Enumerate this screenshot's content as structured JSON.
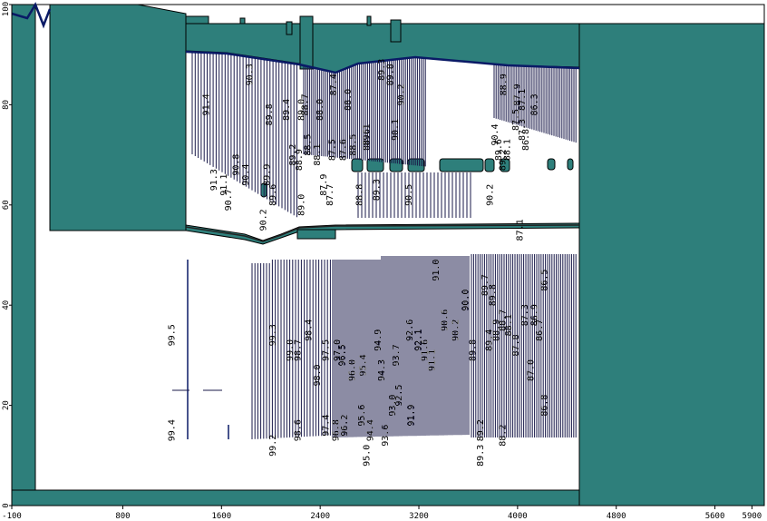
{
  "chart_data": {
    "type": "contour",
    "xlim": [
      -100,
      6000
    ],
    "ylim": [
      0,
      100
    ],
    "x_ticks": [
      {
        "value": -100,
        "label": "-100"
      },
      {
        "value": 800,
        "label": "800"
      },
      {
        "value": 1600,
        "label": "1600"
      },
      {
        "value": 2400,
        "label": "2400"
      },
      {
        "value": 3200,
        "label": "3200"
      },
      {
        "value": 4000,
        "label": "4000"
      },
      {
        "value": 4800,
        "label": "4800"
      },
      {
        "value": 5600,
        "label": "5600"
      },
      {
        "value": 5900,
        "label": "5900"
      }
    ],
    "y_ticks": [
      {
        "value": 0,
        "label": "0"
      },
      {
        "value": 20,
        "label": "20"
      },
      {
        "value": 40,
        "label": "40"
      },
      {
        "value": 60,
        "label": "60"
      },
      {
        "value": 80,
        "label": "80"
      },
      {
        "value": 100,
        "label": "100"
      }
    ],
    "colors": {
      "block": "#2e7f7b",
      "surface": "#0a1a66",
      "contour": "#1a1a4a",
      "background": "#ffffff"
    },
    "lower_labels": [
      {
        "text": "99.5",
        "x": 1220,
        "y": 34
      },
      {
        "text": "99.4",
        "x": 1220,
        "y": 15
      },
      {
        "text": "99.3",
        "x": 2040,
        "y": 34
      },
      {
        "text": "99.2",
        "x": 2040,
        "y": 12
      },
      {
        "text": "99.0",
        "x": 2180,
        "y": 31
      },
      {
        "text": "98.7",
        "x": 2240,
        "y": 31
      },
      {
        "text": "98.4",
        "x": 2330,
        "y": 35
      },
      {
        "text": "98.6",
        "x": 2240,
        "y": 15
      },
      {
        "text": "98.0",
        "x": 2400,
        "y": 26
      },
      {
        "text": "97.5",
        "x": 2470,
        "y": 31
      },
      {
        "text": "97.4",
        "x": 2470,
        "y": 16
      },
      {
        "text": "97.0",
        "x": 2560,
        "y": 31
      },
      {
        "text": "96.5",
        "x": 2600,
        "y": 30
      },
      {
        "text": "96.8",
        "x": 2550,
        "y": 15
      },
      {
        "text": "96.2",
        "x": 2620,
        "y": 16
      },
      {
        "text": "96.0",
        "x": 2680,
        "y": 27
      },
      {
        "text": "95.6",
        "x": 2760,
        "y": 18
      },
      {
        "text": "95.4",
        "x": 2770,
        "y": 28
      },
      {
        "text": "95.0",
        "x": 2800,
        "y": 10
      },
      {
        "text": "94.4",
        "x": 2830,
        "y": 15
      },
      {
        "text": "94.9",
        "x": 2890,
        "y": 33
      },
      {
        "text": "94.3",
        "x": 2920,
        "y": 27
      },
      {
        "text": "93.6",
        "x": 2950,
        "y": 14
      },
      {
        "text": "93.0",
        "x": 3010,
        "y": 20
      },
      {
        "text": "93.7",
        "x": 3040,
        "y": 30
      },
      {
        "text": "92.5",
        "x": 3060,
        "y": 22
      },
      {
        "text": "92.6",
        "x": 3150,
        "y": 35
      },
      {
        "text": "92.1",
        "x": 3220,
        "y": 33
      },
      {
        "text": "91.9",
        "x": 3160,
        "y": 18
      },
      {
        "text": "91.6",
        "x": 3270,
        "y": 31
      },
      {
        "text": "91.1",
        "x": 3330,
        "y": 29
      },
      {
        "text": "91.0",
        "x": 3360,
        "y": 47
      },
      {
        "text": "90.6",
        "x": 3430,
        "y": 37
      },
      {
        "text": "90.2",
        "x": 3520,
        "y": 35
      },
      {
        "text": "90.0",
        "x": 3600,
        "y": 41
      },
      {
        "text": "89.8",
        "x": 3660,
        "y": 31
      },
      {
        "text": "89.7",
        "x": 3760,
        "y": 44
      },
      {
        "text": "89.8",
        "x": 3820,
        "y": 42
      },
      {
        "text": "89.2",
        "x": 3720,
        "y": 15
      },
      {
        "text": "89.3",
        "x": 3720,
        "y": 10
      },
      {
        "text": "89.4",
        "x": 3790,
        "y": 33
      },
      {
        "text": "88.9",
        "x": 3850,
        "y": 35
      },
      {
        "text": "88.7",
        "x": 3900,
        "y": 37
      },
      {
        "text": "88.2",
        "x": 3900,
        "y": 14
      },
      {
        "text": "88.1",
        "x": 3950,
        "y": 36
      },
      {
        "text": "87.8",
        "x": 4010,
        "y": 32
      },
      {
        "text": "87.3",
        "x": 4080,
        "y": 38
      },
      {
        "text": "87.0",
        "x": 4130,
        "y": 27
      },
      {
        "text": "86.9",
        "x": 4160,
        "y": 38
      },
      {
        "text": "86.7",
        "x": 4200,
        "y": 35
      },
      {
        "text": "86.5",
        "x": 4240,
        "y": 45
      },
      {
        "text": "86.8",
        "x": 4240,
        "y": 20
      }
    ],
    "upper_labels": [
      {
        "text": "91.4",
        "x": 1500,
        "y": 80
      },
      {
        "text": "91.3",
        "x": 1560,
        "y": 65
      },
      {
        "text": "91.1",
        "x": 1640,
        "y": 64
      },
      {
        "text": "90.8",
        "x": 1740,
        "y": 68
      },
      {
        "text": "90.7",
        "x": 1680,
        "y": 61
      },
      {
        "text": "90.4",
        "x": 1820,
        "y": 66
      },
      {
        "text": "90.3",
        "x": 1850,
        "y": 86
      },
      {
        "text": "90.2",
        "x": 1960,
        "y": 57
      },
      {
        "text": "89.9",
        "x": 1990,
        "y": 66
      },
      {
        "text": "89.8",
        "x": 2010,
        "y": 78
      },
      {
        "text": "89.6",
        "x": 2040,
        "y": 62
      },
      {
        "text": "89.4",
        "x": 2150,
        "y": 79
      },
      {
        "text": "89.2",
        "x": 2200,
        "y": 70
      },
      {
        "text": "89.0",
        "x": 2270,
        "y": 60
      },
      {
        "text": "89.0",
        "x": 2270,
        "y": 79
      },
      {
        "text": "88.9",
        "x": 2250,
        "y": 69
      },
      {
        "text": "88.7",
        "x": 2300,
        "y": 80
      },
      {
        "text": "88.5",
        "x": 2320,
        "y": 72
      },
      {
        "text": "88.1",
        "x": 2400,
        "y": 70
      },
      {
        "text": "88.0",
        "x": 2420,
        "y": 79
      },
      {
        "text": "87.9",
        "x": 2450,
        "y": 64
      },
      {
        "text": "87.7",
        "x": 2500,
        "y": 62
      },
      {
        "text": "87.5",
        "x": 2520,
        "y": 71
      },
      {
        "text": "87.4",
        "x": 2530,
        "y": 84
      },
      {
        "text": "87.6",
        "x": 2610,
        "y": 71
      },
      {
        "text": "88.0",
        "x": 2650,
        "y": 81
      },
      {
        "text": "88.5",
        "x": 2690,
        "y": 72
      },
      {
        "text": "88.8",
        "x": 2740,
        "y": 62
      },
      {
        "text": "88.6",
        "x": 2800,
        "y": 73
      },
      {
        "text": "89.1",
        "x": 2800,
        "y": 74
      },
      {
        "text": "89.3",
        "x": 2880,
        "y": 63
      },
      {
        "text": "89.3",
        "x": 2920,
        "y": 87
      },
      {
        "text": "89.8",
        "x": 2990,
        "y": 86
      },
      {
        "text": "90.1",
        "x": 3030,
        "y": 75
      },
      {
        "text": "90.2",
        "x": 3080,
        "y": 82
      },
      {
        "text": "90.5",
        "x": 3140,
        "y": 62
      },
      {
        "text": "90.2",
        "x": 3800,
        "y": 62
      },
      {
        "text": "90.4",
        "x": 3840,
        "y": 74
      },
      {
        "text": "89.6",
        "x": 3870,
        "y": 71
      },
      {
        "text": "89.2",
        "x": 3900,
        "y": 69
      },
      {
        "text": "88.9",
        "x": 3910,
        "y": 84
      },
      {
        "text": "88.1",
        "x": 3940,
        "y": 71
      },
      {
        "text": "87.9",
        "x": 4020,
        "y": 82
      },
      {
        "text": "87.5",
        "x": 4010,
        "y": 77
      },
      {
        "text": "87.1",
        "x": 4060,
        "y": 81
      },
      {
        "text": "87.3",
        "x": 4060,
        "y": 75
      },
      {
        "text": "86.8",
        "x": 4090,
        "y": 73
      },
      {
        "text": "86.3",
        "x": 4160,
        "y": 80
      },
      {
        "text": "87.1",
        "x": 4040,
        "y": 55
      }
    ]
  }
}
